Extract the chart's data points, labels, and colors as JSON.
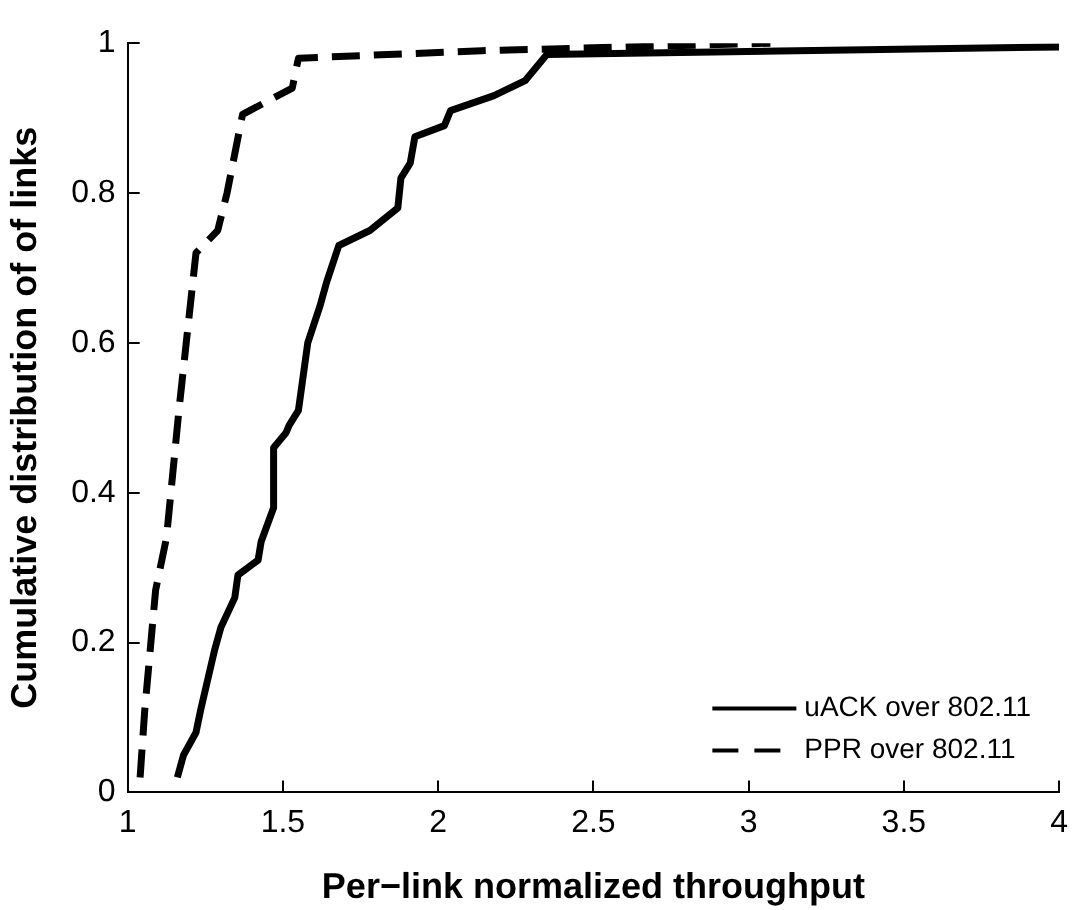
{
  "chart_data": {
    "type": "line",
    "xlabel": "Per−link normalized throughput",
    "ylabel": "Cumulative distribution of of links",
    "xlim": [
      1,
      4
    ],
    "xticks": [
      1,
      1.5,
      2,
      2.5,
      3,
      3.5,
      4
    ],
    "ylim": [
      0,
      1
    ],
    "yticks": [
      0,
      0.2,
      0.4,
      0.6,
      0.8,
      1
    ],
    "grid": false,
    "legend": "bottom right",
    "marker": "none",
    "series": [
      {
        "name": "uACK over 802.11",
        "color": "#000000",
        "line_style": "solid",
        "x": [
          1.16,
          1.18,
          1.22,
          1.235,
          1.28,
          1.3,
          1.345,
          1.355,
          1.42,
          1.43,
          1.47,
          1.47,
          1.51,
          1.52,
          1.55,
          1.58,
          1.62,
          1.64,
          1.68,
          1.78,
          1.87,
          1.88,
          1.91,
          1.925,
          2.02,
          2.04,
          2.18,
          2.28,
          2.35,
          4
        ],
        "values": [
          0.02,
          0.05,
          0.08,
          0.11,
          0.19,
          0.22,
          0.26,
          0.29,
          0.31,
          0.335,
          0.38,
          0.46,
          0.48,
          0.49,
          0.51,
          0.6,
          0.65,
          0.68,
          0.73,
          0.75,
          0.78,
          0.82,
          0.84,
          0.875,
          0.89,
          0.91,
          0.93,
          0.95,
          0.985,
          0.995
        ]
      },
      {
        "name": "PPR over 802.11",
        "color": "#000000",
        "line_style": "dashed",
        "x": [
          1.04,
          1.055,
          1.09,
          1.125,
          1.165,
          1.22,
          1.29,
          1.32,
          1.37,
          1.53,
          1.55,
          2.14,
          3.07
        ],
        "values": [
          0.02,
          0.11,
          0.27,
          0.34,
          0.51,
          0.72,
          0.75,
          0.8,
          0.905,
          0.94,
          0.98,
          0.99,
          1.0
        ]
      }
    ]
  }
}
